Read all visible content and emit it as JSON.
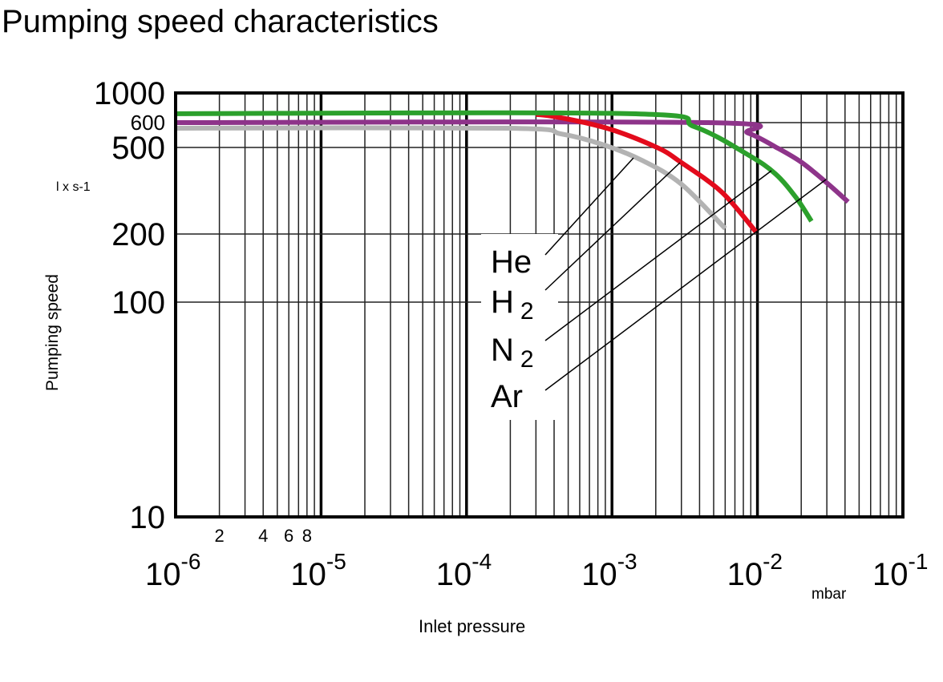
{
  "chart_data": {
    "type": "line",
    "title": "Pumping speed characteristics",
    "xlabel": "Inlet pressure",
    "xunit": "mbar",
    "ylabel": "Pumping speed",
    "yunit": "l x s-1",
    "xscale": "log",
    "yscale": "log",
    "xlim": [
      1e-06,
      0.1
    ],
    "ylim": [
      10,
      1000
    ],
    "grid": true,
    "x_major_ticks": [
      {
        "value": 1e-06,
        "base": "10",
        "exp": "-6"
      },
      {
        "value": 1e-05,
        "base": "10",
        "exp": "-5"
      },
      {
        "value": 0.0001,
        "base": "10",
        "exp": "-4"
      },
      {
        "value": 0.001,
        "base": "10",
        "exp": "-3"
      },
      {
        "value": 0.01,
        "base": "10",
        "exp": "-2"
      },
      {
        "value": 0.1,
        "base": "10",
        "exp": "-1"
      }
    ],
    "x_minor_tick_labels": [
      {
        "value": 2e-06,
        "label": "2"
      },
      {
        "value": 4e-06,
        "label": "4"
      },
      {
        "value": 6e-06,
        "label": "6"
      },
      {
        "value": 8e-06,
        "label": "8"
      }
    ],
    "y_ticks": [
      {
        "value": 1000,
        "label": "1000"
      },
      {
        "value": 600,
        "label": "600"
      },
      {
        "value": 500,
        "label": "500"
      },
      {
        "value": 200,
        "label": "200"
      },
      {
        "value": 100,
        "label": "100"
      },
      {
        "value": 10,
        "label": "10"
      }
    ],
    "series": [
      {
        "name": "He",
        "sub": "",
        "color": "#b3b3b3",
        "points": [
          [
            1e-06,
            576
          ],
          [
            0.00019,
            576
          ],
          [
            0.00045,
            552
          ],
          [
            0.00085,
            512
          ],
          [
            0.0016,
            437
          ],
          [
            0.003,
            339
          ],
          [
            0.006,
            212
          ]
        ]
      },
      {
        "name": "Ar",
        "sub": "",
        "color": "#8e348a",
        "points": [
          [
            1e-06,
            600
          ],
          [
            0.0046,
            600
          ],
          [
            0.0086,
            556
          ],
          [
            0.0133,
            502
          ],
          [
            0.0202,
            426
          ],
          [
            0.0307,
            339
          ],
          [
            0.042,
            281
          ]
        ]
      },
      {
        "name": "H",
        "sub": "2",
        "color": "#e30b1c",
        "points": [
          [
            0.0003,
            690
          ],
          [
            0.00085,
            582
          ],
          [
            0.002,
            502
          ],
          [
            0.003,
            426
          ],
          [
            0.0057,
            311
          ],
          [
            0.0098,
            204
          ]
        ]
      },
      {
        "name": "N",
        "sub": "2",
        "color": "#2ca02c",
        "points": [
          [
            1e-06,
            700
          ],
          [
            0.00135,
            700
          ],
          [
            0.0037,
            582
          ],
          [
            0.0086,
            463
          ],
          [
            0.0133,
            378
          ],
          [
            0.0185,
            293
          ],
          [
            0.0235,
            229
          ]
        ]
      }
    ],
    "legend": "inline labels with leader lines, center",
    "label_order": [
      "He",
      "H2",
      "N2",
      "Ar"
    ]
  }
}
